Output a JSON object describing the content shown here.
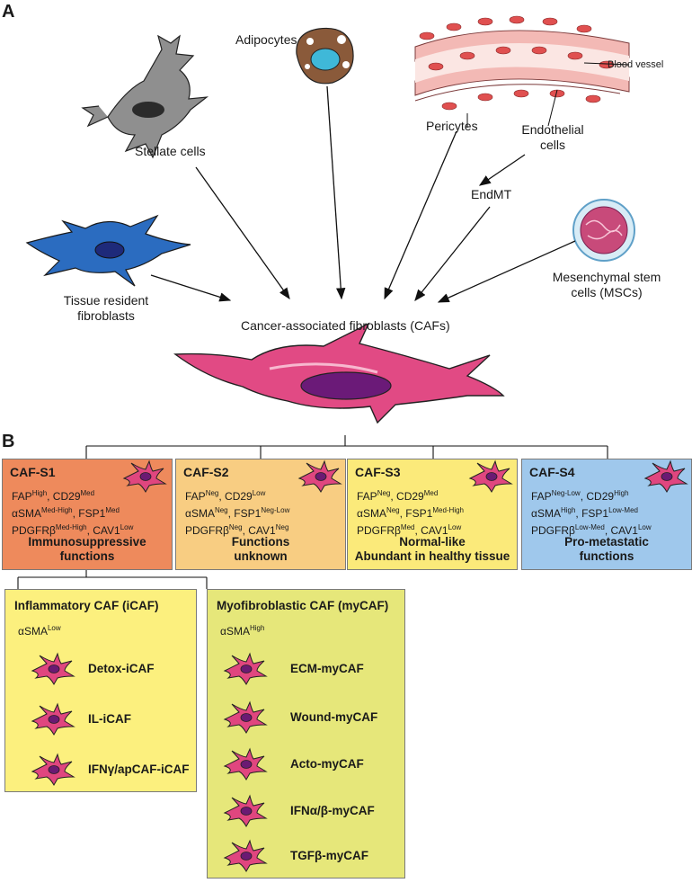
{
  "panels": {
    "a": "A",
    "b": "B"
  },
  "sources": {
    "adipocytes": "Adipocytes",
    "stellate": "Stellate cells",
    "blood_vessel": "Blood vessel",
    "pericytes": "Pericytes",
    "endothelial_1": "Endothelial",
    "endothelial_2": "cells",
    "endmt": "EndMT",
    "tissue_1": "Tissue resident",
    "tissue_2": "fibroblasts",
    "msc_1": "Mesenchymal stem",
    "msc_2": "cells (MSCs)"
  },
  "caf_label": "Cancer-associated fibroblasts (CAFs)",
  "subsets": [
    {
      "title": "CAF-S1",
      "color": "#ee8a5c",
      "m1a": "FAP",
      "m1as": "High",
      "m1b": ", CD29",
      "m1bs": "Med",
      "m2a": "αSMA",
      "m2as": "Med-High",
      "m2b": ", FSP1",
      "m2bs": "Med",
      "m3a": "PDGFRβ",
      "m3as": "Med-High",
      "m3b": ", CAV1",
      "m3bs": "Low",
      "f1": "Immunosuppressive",
      "f2": "functions"
    },
    {
      "title": "CAF-S2",
      "color": "#f8cd82",
      "m1a": "FAP",
      "m1as": "Neg",
      "m1b": ", CD29",
      "m1bs": "Low",
      "m2a": "αSMA",
      "m2as": "Neg",
      "m2b": ", FSP1",
      "m2bs": "Neg-Low",
      "m3a": "PDGFRβ",
      "m3as": "Neg",
      "m3b": ", CAV1",
      "m3bs": "Neg",
      "f1": "Functions",
      "f2": "unknown"
    },
    {
      "title": "CAF-S3",
      "color": "#fbea7a",
      "m1a": "FAP",
      "m1as": "Neg",
      "m1b": ", CD29",
      "m1bs": "Med",
      "m2a": "αSMA",
      "m2as": "Neg",
      "m2b": ", FSP1",
      "m2bs": "Med-High",
      "m3a": "PDGFRβ",
      "m3as": "Med",
      "m3b": ", CAV1",
      "m3bs": "Low",
      "f1": "Normal-like",
      "f2": "Abundant in healthy tissue"
    },
    {
      "title": "CAF-S4",
      "color": "#9fc8ec",
      "m1a": "FAP",
      "m1as": "Neg-Low",
      "m1b": ", CD29",
      "m1bs": "High",
      "m2a": "αSMA",
      "m2as": "High",
      "m2b": ", FSP1",
      "m2bs": "Low-Med",
      "m3a": "PDGFRβ",
      "m3as": "Low-Med",
      "m3b": ", CAV1",
      "m3bs": "Low",
      "f1": "Pro-metastatic",
      "f2": "functions"
    }
  ],
  "icaf": {
    "title": "Inflammatory CAF (iCAF)",
    "color": "#fcf07e",
    "marker": "αSMA",
    "marker_sup": "Low",
    "items": [
      "Detox-iCAF",
      "IL-iCAF",
      "IFNγ/apCAF-iCAF"
    ]
  },
  "mycaf": {
    "title": "Myofibroblastic CAF (myCAF)",
    "color": "#e6e77a",
    "marker": "αSMA",
    "marker_sup": "High",
    "items": [
      "ECM-myCAF",
      "Wound-myCAF",
      "Acto-myCAF",
      "IFNα/β-myCAF",
      "TGFβ-myCAF"
    ]
  }
}
